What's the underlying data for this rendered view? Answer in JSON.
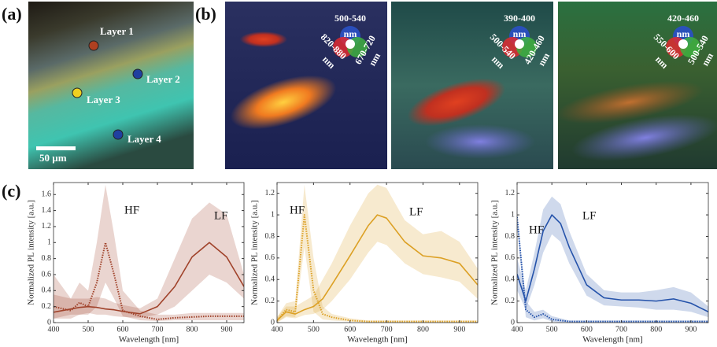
{
  "figure": {
    "panel_labels": [
      "(a)",
      "(b)",
      "(c)"
    ],
    "layers": [
      "Layer 1",
      "Layer 2",
      "Layer 3",
      "Layer 4"
    ],
    "scale_bar": "50 µm",
    "wheels": [
      {
        "top": "500-540",
        "left": "820-880",
        "right": "670-720",
        "unit": "nm"
      },
      {
        "top": "390-400",
        "left": "500-540",
        "right": "420-460",
        "unit": "nm"
      },
      {
        "top": "420-460",
        "left": "550-600",
        "right": "500-540",
        "unit": "nm"
      }
    ]
  },
  "chart_data": [
    {
      "type": "line",
      "xlabel": "Wavelength [nm]",
      "ylabel": "Normalized PL intensity [a.u.]",
      "xlim": [
        400,
        950
      ],
      "xticks": [
        400,
        500,
        600,
        700,
        800,
        900
      ],
      "ylim": [
        0,
        1.75
      ],
      "yticks": [
        0,
        0.2,
        0.4,
        0.6,
        0.8,
        1,
        1.2,
        1.4,
        1.6
      ],
      "x": [
        400,
        450,
        475,
        500,
        525,
        550,
        575,
        600,
        650,
        700,
        750,
        800,
        850,
        900,
        950
      ],
      "series": [
        {
          "name": "LF",
          "color": "#a0422a",
          "style": "solid",
          "values": [
            0.13,
            0.17,
            0.19,
            0.2,
            0.19,
            0.17,
            0.16,
            0.14,
            0.11,
            0.2,
            0.45,
            0.82,
            1.0,
            0.82,
            0.45
          ],
          "upper": [
            0.6,
            0.3,
            0.3,
            0.3,
            0.32,
            0.3,
            0.25,
            0.22,
            0.18,
            0.3,
            0.8,
            1.3,
            1.5,
            1.35,
            0.6
          ],
          "lower": [
            0.05,
            0.1,
            0.1,
            0.12,
            0.1,
            0.1,
            0.08,
            0.07,
            0.06,
            0.1,
            0.2,
            0.4,
            0.6,
            0.5,
            0.3
          ]
        },
        {
          "name": "HF",
          "color": "#a0422a",
          "style": "dotted",
          "values": [
            0.2,
            0.15,
            0.25,
            0.2,
            0.5,
            1.0,
            0.6,
            0.15,
            0.08,
            0.04,
            0.06,
            0.07,
            0.08,
            0.08,
            0.08
          ],
          "upper": [
            0.35,
            0.3,
            0.5,
            0.4,
            1.0,
            1.72,
            1.1,
            0.4,
            0.15,
            0.1,
            0.1,
            0.12,
            0.12,
            0.12,
            0.12
          ],
          "lower": [
            0.05,
            0.05,
            0.1,
            0.1,
            0.2,
            0.5,
            0.3,
            0.08,
            0.03,
            0.02,
            0.03,
            0.03,
            0.03,
            0.03,
            0.03
          ]
        }
      ]
    },
    {
      "type": "line",
      "xlabel": "Wavelength [nm]",
      "ylabel": "Normalized PL intensity [a.u.]",
      "xlim": [
        400,
        950
      ],
      "xticks": [
        400,
        500,
        600,
        700,
        800,
        900
      ],
      "ylim": [
        0,
        1.3
      ],
      "yticks": [
        0,
        0.2,
        0.4,
        0.6,
        0.8,
        1,
        1.2
      ],
      "x": [
        400,
        425,
        450,
        475,
        500,
        525,
        550,
        600,
        650,
        675,
        700,
        750,
        800,
        850,
        900,
        950
      ],
      "series": [
        {
          "name": "LF",
          "color": "#dca024",
          "style": "solid",
          "values": [
            0.02,
            0.1,
            0.08,
            0.12,
            0.15,
            0.22,
            0.35,
            0.62,
            0.9,
            1.0,
            0.97,
            0.75,
            0.62,
            0.6,
            0.55,
            0.35
          ],
          "upper": [
            0.05,
            0.15,
            0.15,
            0.2,
            0.25,
            0.4,
            0.55,
            0.9,
            1.2,
            1.28,
            1.25,
            0.95,
            0.82,
            0.85,
            0.75,
            0.5
          ],
          "lower": [
            0,
            0.05,
            0.04,
            0.07,
            0.08,
            0.12,
            0.2,
            0.4,
            0.65,
            0.75,
            0.72,
            0.55,
            0.45,
            0.42,
            0.38,
            0.22
          ]
        },
        {
          "name": "HF",
          "color": "#dca024",
          "style": "dotted",
          "values": [
            0.02,
            0.12,
            0.1,
            1.0,
            0.3,
            0.08,
            0.05,
            0.02,
            0.01,
            0.01,
            0.01,
            0.01,
            0.01,
            0.01,
            0.01,
            0.01
          ],
          "upper": [
            0.05,
            0.18,
            0.2,
            1.28,
            0.6,
            0.15,
            0.08,
            0.04,
            0.02,
            0.02,
            0.02,
            0.02,
            0.02,
            0.02,
            0.02,
            0.02
          ],
          "lower": [
            0,
            0.06,
            0.05,
            0.7,
            0.1,
            0.03,
            0.02,
            0.01,
            0,
            0,
            0,
            0,
            0,
            0,
            0,
            0
          ]
        }
      ]
    },
    {
      "type": "line",
      "xlabel": "Wavelength [nm]",
      "ylabel": "Normalized PL intensity [a.u.]",
      "xlim": [
        400,
        950
      ],
      "xticks": [
        400,
        500,
        600,
        700,
        800,
        900
      ],
      "ylim": [
        0,
        1.3
      ],
      "yticks": [
        0,
        0.2,
        0.4,
        0.6,
        0.8,
        1,
        1.2
      ],
      "x": [
        400,
        425,
        450,
        475,
        500,
        525,
        550,
        600,
        650,
        700,
        750,
        800,
        850,
        900,
        950
      ],
      "series": [
        {
          "name": "LF",
          "color": "#2452aa",
          "style": "solid",
          "values": [
            0.45,
            0.2,
            0.5,
            0.85,
            1.0,
            0.92,
            0.7,
            0.35,
            0.23,
            0.21,
            0.21,
            0.2,
            0.22,
            0.18,
            0.1
          ],
          "upper": [
            0.6,
            0.3,
            0.65,
            1.05,
            1.17,
            1.1,
            0.85,
            0.45,
            0.3,
            0.28,
            0.28,
            0.3,
            0.33,
            0.28,
            0.15
          ],
          "lower": [
            0.3,
            0.12,
            0.35,
            0.65,
            0.82,
            0.75,
            0.55,
            0.25,
            0.16,
            0.15,
            0.14,
            0.12,
            0.12,
            0.1,
            0.05
          ]
        },
        {
          "name": "HF",
          "color": "#2452aa",
          "style": "dotted",
          "values": [
            0.98,
            0.12,
            0.05,
            0.08,
            0.03,
            0.02,
            0.01,
            0.01,
            0.01,
            0.01,
            0.01,
            0.01,
            0.01,
            0.01,
            0.01
          ],
          "upper": [
            1.0,
            0.2,
            0.1,
            0.12,
            0.06,
            0.04,
            0.02,
            0.02,
            0.02,
            0.02,
            0.02,
            0.02,
            0.02,
            0.02,
            0.02
          ],
          "lower": [
            0.9,
            0.05,
            0.02,
            0.04,
            0.01,
            0,
            0,
            0,
            0,
            0,
            0,
            0,
            0,
            0,
            0
          ]
        }
      ]
    }
  ]
}
